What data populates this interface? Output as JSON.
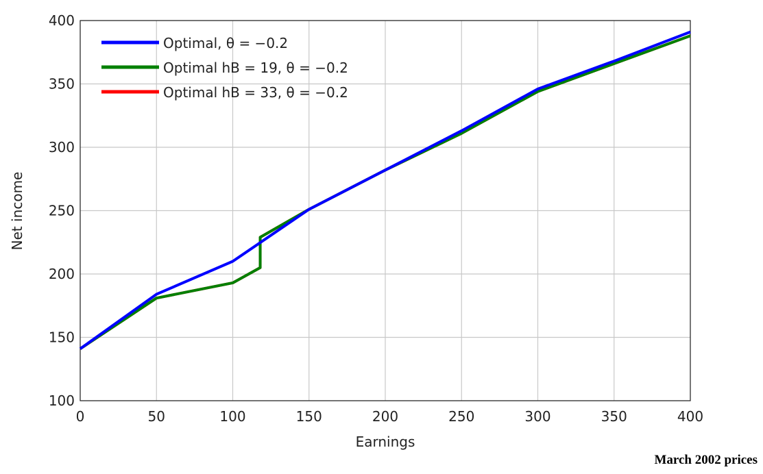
{
  "chart_data": {
    "type": "line",
    "x_label": "Earnings",
    "y_label": "Net income",
    "annotation": "March 2002 prices",
    "xlim": [
      0,
      400
    ],
    "xticks": [
      0,
      50,
      100,
      150,
      200,
      250,
      300,
      350,
      400
    ],
    "ylim": [
      100,
      400
    ],
    "yticks": [
      100,
      150,
      200,
      250,
      300,
      350,
      400
    ],
    "grid": true,
    "legend": "upper left",
    "series": [
      {
        "name": "Optimal, θ = −0.2",
        "color": "#0000ff",
        "x": [
          0,
          50,
          100,
          150,
          200,
          250,
          300,
          350,
          400
        ],
        "values": [
          141,
          184,
          210,
          251,
          282,
          313,
          346,
          368,
          391
        ]
      },
      {
        "name": "Optimal hB = 19, θ = −0.2",
        "color": "#008000",
        "x": [
          0,
          50,
          100,
          118,
          118,
          150,
          200,
          250,
          300,
          350,
          400
        ],
        "values": [
          141,
          181,
          193,
          205,
          229,
          251,
          282,
          311,
          344,
          366,
          388
        ]
      },
      {
        "name": "Optimal hB = 33, θ = −0.2",
        "color": "#ff0000",
        "x": [
          0,
          50,
          100,
          118,
          118,
          150,
          200,
          250,
          300,
          350,
          400
        ],
        "values": [
          141,
          181,
          193,
          205,
          229,
          251,
          282,
          311,
          344,
          366,
          388
        ]
      }
    ]
  }
}
